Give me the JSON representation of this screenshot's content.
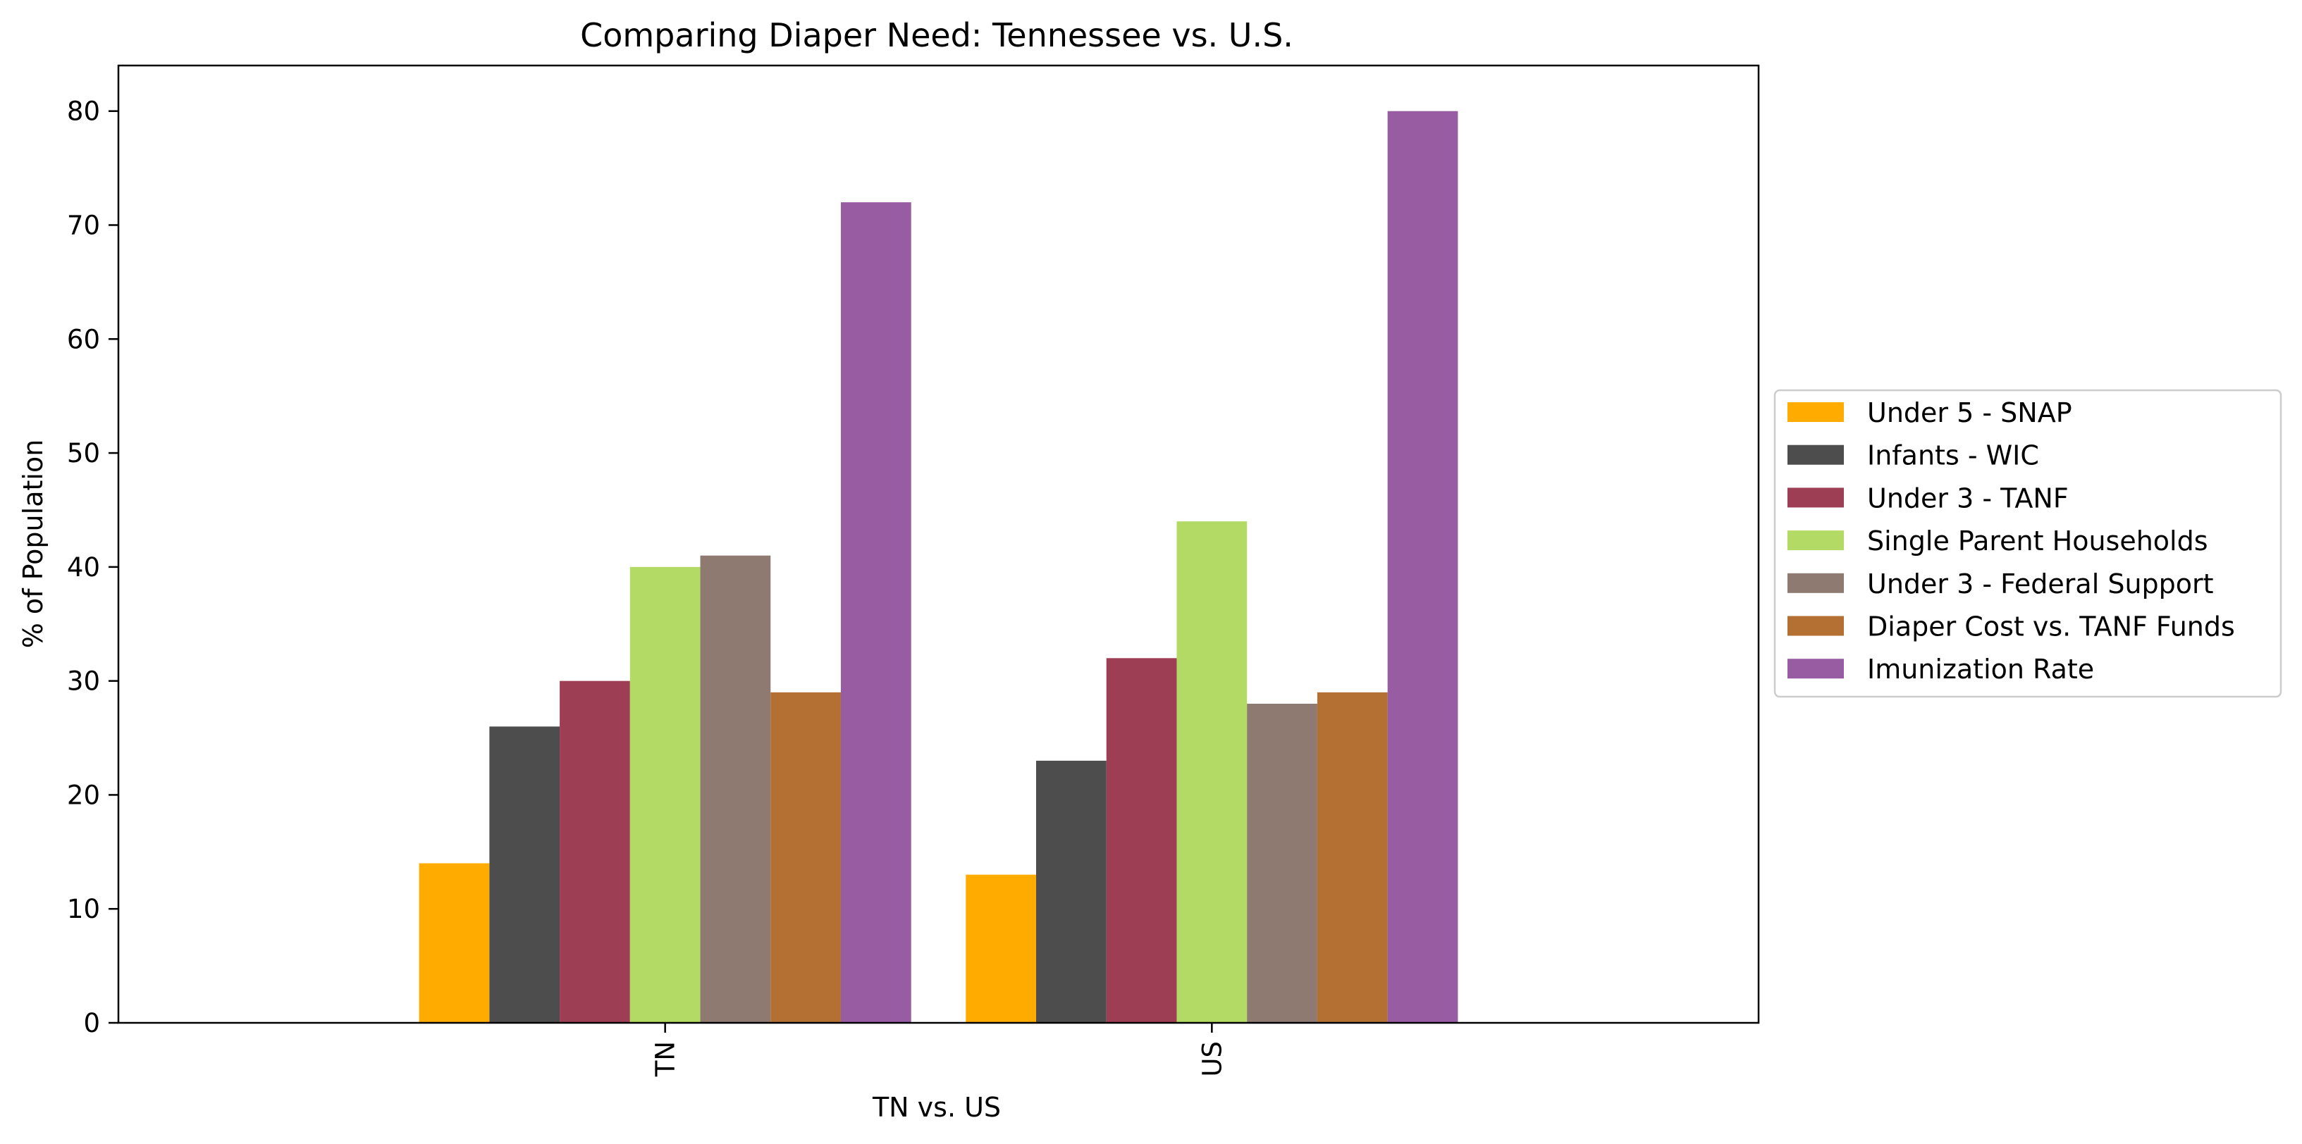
{
  "chart_data": {
    "type": "bar",
    "title": "Comparing Diaper Need: Tennessee vs. U.S.",
    "xlabel": "TN vs. US",
    "ylabel": "% of Population",
    "categories": [
      "TN",
      "US"
    ],
    "ylim": [
      0,
      84
    ],
    "yticks": [
      0,
      10,
      20,
      30,
      40,
      50,
      60,
      70,
      80
    ],
    "grid": false,
    "legend_position": "center-right, outside plot",
    "series": [
      {
        "name": "Under 5 - SNAP",
        "color": "#ffab00",
        "values": [
          14,
          13
        ]
      },
      {
        "name": "Infants - WIC",
        "color": "#4d4d4d",
        "values": [
          26,
          23
        ]
      },
      {
        "name": "Under 3 - TANF",
        "color": "#9d3e55",
        "values": [
          30,
          32
        ]
      },
      {
        "name": "Single Parent Households",
        "color": "#b2da64",
        "values": [
          40,
          44
        ]
      },
      {
        "name": "Under 3 - Federal Support",
        "color": "#8e7a71",
        "values": [
          41,
          28
        ]
      },
      {
        "name": "Diaper Cost vs. TANF Funds",
        "color": "#b47033",
        "values": [
          29,
          29
        ]
      },
      {
        "name": "Imunization Rate",
        "color": "#975ca2",
        "values": [
          72,
          80
        ]
      }
    ]
  }
}
